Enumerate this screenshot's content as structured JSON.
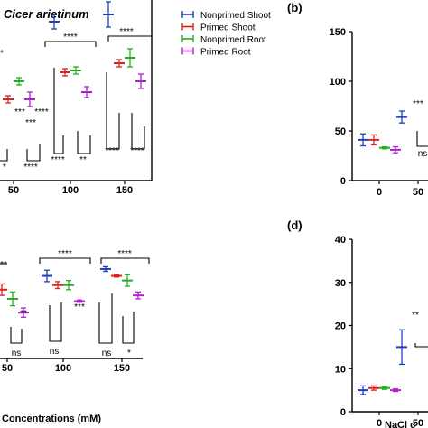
{
  "figure": {
    "title": "Cicer arietinum",
    "panel_b_label": "(b)",
    "panel_d_label": "(d)",
    "xlabel_a": "Concentrations (mM)",
    "xlabel_c": "NaCl c",
    "legend": [
      {
        "name": "Nonprimed Shoot",
        "color": "#1f3fbf"
      },
      {
        "name": "Primed Shoot",
        "color": "#e02020"
      },
      {
        "name": "Nonprimed Root",
        "color": "#20b020"
      },
      {
        "name": "Primed Root",
        "color": "#b020d0"
      }
    ]
  },
  "chart_data": [
    {
      "id": "panel-a-top",
      "type": "scatter",
      "categories": [
        "50",
        "100",
        "150"
      ],
      "series": [
        {
          "name": "Nonprimed Shoot",
          "values": [
            null,
            88,
            92
          ],
          "err": [
            null,
            4,
            7
          ]
        },
        {
          "name": "Primed Shoot",
          "values": [
            45,
            60,
            65
          ],
          "err": [
            2,
            2,
            2
          ]
        },
        {
          "name": "Nonprimed Root",
          "values": [
            55,
            61,
            68
          ],
          "err": [
            2,
            2,
            5
          ]
        },
        {
          "name": "Primed Root",
          "values": [
            45,
            49,
            55
          ],
          "err": [
            4,
            3,
            4
          ]
        }
      ],
      "annotations": [
        "****",
        "****",
        "****",
        "***",
        "*",
        "****",
        "****",
        "**",
        "***",
        "****",
        "****",
        "*"
      ]
    },
    {
      "id": "panel-a-bottom",
      "type": "scatter",
      "categories": [
        "50",
        "100",
        "150"
      ],
      "series": [
        {
          "name": "Nonprimed Shoot",
          "values": [
            null,
            72,
            78
          ],
          "err": [
            null,
            5,
            2
          ]
        },
        {
          "name": "Primed Shoot",
          "values": [
            60,
            64,
            72
          ],
          "err": [
            5,
            3,
            1
          ]
        },
        {
          "name": "Nonprimed Root",
          "values": [
            52,
            64,
            68
          ],
          "err": [
            6,
            4,
            5
          ]
        },
        {
          "name": "Primed Root",
          "values": [
            40,
            50,
            55
          ],
          "err": [
            4,
            1,
            3
          ]
        }
      ],
      "annotations": [
        "**",
        "**",
        "****",
        "****",
        "***",
        "ns",
        "ns",
        "ns",
        "*"
      ]
    },
    {
      "id": "panel-b",
      "type": "scatter",
      "title": "(b)",
      "categories": [
        "0",
        "50"
      ],
      "yticks": [
        0,
        50,
        100,
        150
      ],
      "ylim": [
        0,
        150
      ],
      "series": [
        {
          "name": "Nonprimed Shoot",
          "values": [
            41,
            64
          ],
          "err": [
            6,
            6
          ]
        },
        {
          "name": "Primed Shoot",
          "values": [
            41,
            null
          ],
          "err": [
            5,
            null
          ]
        },
        {
          "name": "Nonprimed Root",
          "values": [
            33,
            null
          ],
          "err": [
            1,
            null
          ]
        },
        {
          "name": "Primed Root",
          "values": [
            31,
            null
          ],
          "err": [
            3,
            null
          ]
        }
      ],
      "annotations": [
        "***",
        "ns"
      ]
    },
    {
      "id": "panel-d",
      "type": "scatter",
      "title": "(d)",
      "xlabel": "NaCl c",
      "categories": [
        "0",
        "50"
      ],
      "yticks": [
        0,
        10,
        20,
        30,
        40
      ],
      "ylim": [
        0,
        40
      ],
      "series": [
        {
          "name": "Nonprimed Shoot",
          "values": [
            5,
            15
          ],
          "err": [
            1,
            4
          ]
        },
        {
          "name": "Primed Shoot",
          "values": [
            5.5,
            null
          ],
          "err": [
            0.5,
            null
          ]
        },
        {
          "name": "Nonprimed Root",
          "values": [
            5.5,
            null
          ],
          "err": [
            0.3,
            null
          ]
        },
        {
          "name": "Primed Root",
          "values": [
            5,
            null
          ],
          "err": [
            0.3,
            null
          ]
        }
      ],
      "annotations": [
        "**"
      ]
    }
  ]
}
